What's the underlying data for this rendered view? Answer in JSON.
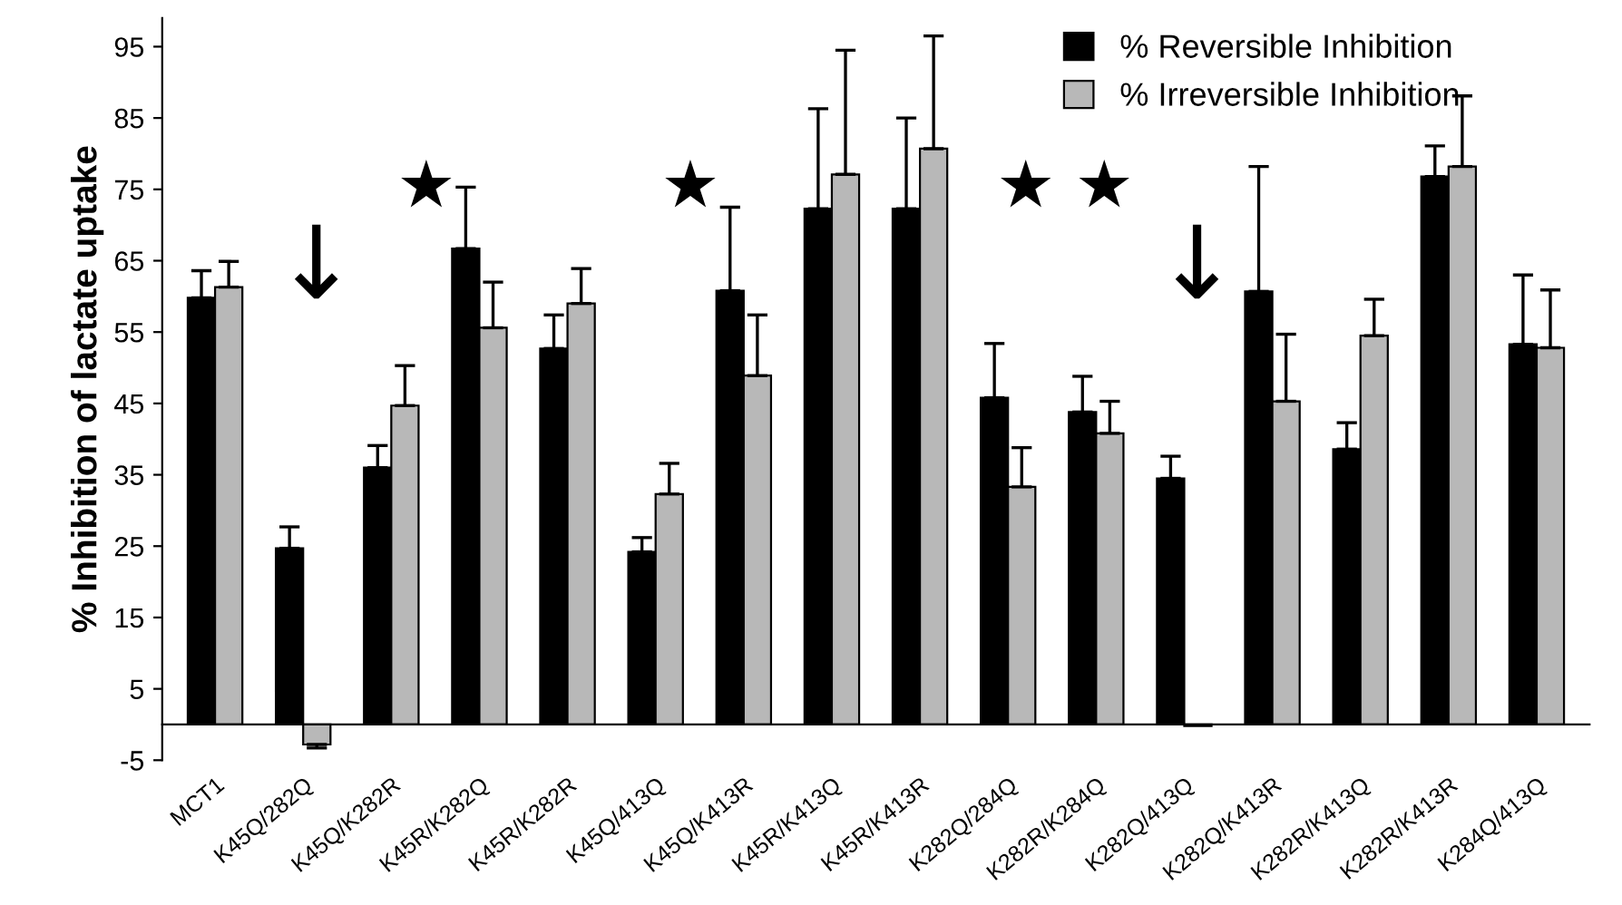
{
  "chart_data": {
    "type": "bar",
    "ylabel": "% Inhibition of lactate uptake",
    "categories": [
      "MCT1",
      "K45Q/282Q",
      "K45Q/K282R",
      "K45R/K282Q",
      "K45R/K282R",
      "K45Q/413Q",
      "K45Q/K413R",
      "K45R/K413Q",
      "K45R/K413R",
      "K282Q/284Q",
      "K282R/K284Q",
      "K282Q/413Q",
      "K282Q/K413R",
      "K282R/K413Q",
      "K282R/K413R",
      "K284Q/413Q"
    ],
    "series": [
      {
        "name": "% Reversible Inhibition",
        "color": "#000000",
        "values": [
          59.8,
          24.7,
          36.0,
          66.7,
          52.7,
          24.2,
          60.8,
          72.3,
          72.3,
          45.8,
          43.8,
          34.5,
          60.7,
          38.6,
          76.8,
          53.3
        ],
        "errors": [
          [
            59.8,
            63.6
          ],
          [
            24.7,
            27.7
          ],
          [
            36.0,
            39.1
          ],
          [
            66.7,
            75.3
          ],
          [
            52.7,
            57.4
          ],
          [
            24.2,
            26.2
          ],
          [
            60.8,
            72.5
          ],
          [
            72.3,
            86.3
          ],
          [
            72.3,
            85.0
          ],
          [
            45.8,
            53.4
          ],
          [
            43.8,
            48.8
          ],
          [
            34.5,
            37.6
          ],
          [
            60.7,
            78.2
          ],
          [
            38.6,
            42.3
          ],
          [
            76.8,
            81.1
          ],
          [
            53.3,
            63.0
          ]
        ]
      },
      {
        "name": "% Irreversible Inhibition",
        "color": "#b8b8b8",
        "values": [
          61.3,
          -2.8,
          44.7,
          55.6,
          59.0,
          32.3,
          48.9,
          77.1,
          80.7,
          33.3,
          40.8,
          -0.2,
          45.3,
          54.5,
          78.2,
          52.8
        ],
        "errors": [
          [
            61.3,
            64.9
          ],
          [
            -3.3,
            -2.8
          ],
          [
            44.7,
            50.3
          ],
          [
            55.6,
            62.0
          ],
          [
            59.0,
            63.9
          ],
          [
            32.3,
            36.6
          ],
          [
            48.9,
            57.4
          ],
          [
            77.1,
            94.5
          ],
          [
            80.7,
            96.5
          ],
          [
            33.3,
            38.8
          ],
          [
            40.8,
            45.3
          ],
          null,
          [
            45.3,
            54.7
          ],
          [
            54.5,
            59.6
          ],
          [
            78.2,
            88.1
          ],
          [
            52.8,
            60.9
          ]
        ]
      }
    ],
    "ylim": [
      -5,
      99
    ],
    "yticks": [
      -5,
      5,
      15,
      25,
      35,
      45,
      55,
      65,
      75,
      85,
      95
    ],
    "annotations": [
      "↓",
      "★",
      "★",
      "★",
      "★",
      "↓"
    ],
    "legend": "top right",
    "grid": false
  }
}
